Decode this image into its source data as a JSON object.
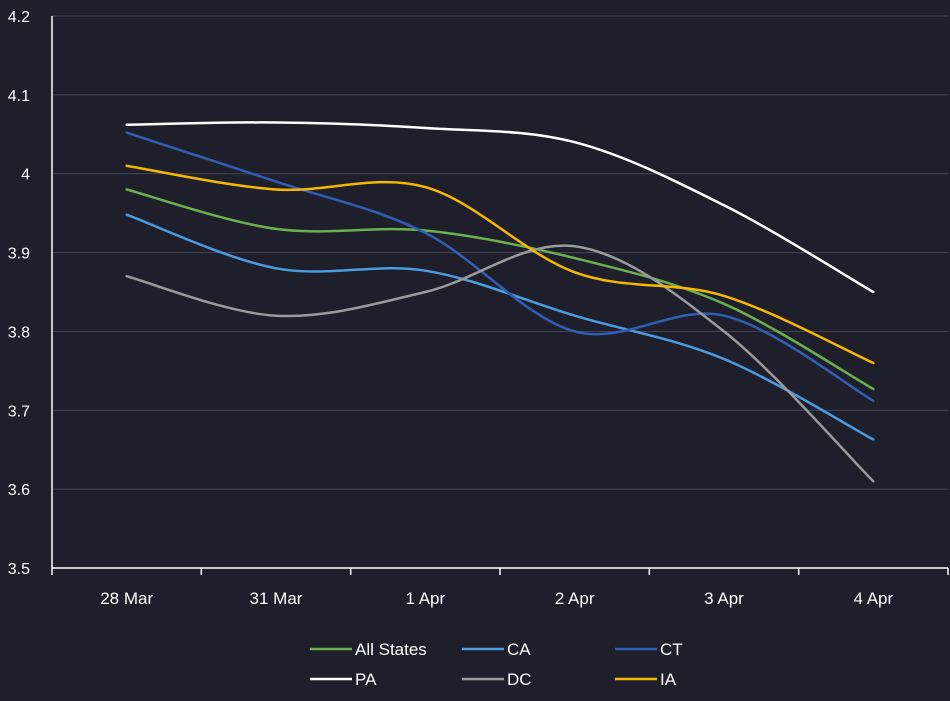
{
  "chart_data": {
    "type": "line",
    "title": "",
    "xlabel": "",
    "ylabel": "",
    "categories": [
      "28 Mar",
      "31 Mar",
      "1 Apr",
      "2 Apr",
      "3 Apr",
      "4 Apr"
    ],
    "ylim": [
      3.5,
      4.2
    ],
    "yticks": [
      "3.5",
      "3.6",
      "3.7",
      "3.8",
      "3.9",
      "4",
      "4.1",
      "4.2"
    ],
    "grid": "horizontal",
    "legend_position": "bottom",
    "series": [
      {
        "name": "All States",
        "color": "#6ab04c",
        "values": [
          3.98,
          3.93,
          3.928,
          3.893,
          3.835,
          3.727
        ]
      },
      {
        "name": "CA",
        "color": "#4a9be0",
        "values": [
          3.948,
          3.88,
          3.877,
          3.82,
          3.765,
          3.663
        ]
      },
      {
        "name": "CT",
        "color": "#2f5fb3",
        "values": [
          4.052,
          3.99,
          3.925,
          3.8,
          3.82,
          3.712
        ]
      },
      {
        "name": "PA",
        "color": "#ffffff",
        "values": [
          4.062,
          4.065,
          4.058,
          4.04,
          3.96,
          3.85
        ]
      },
      {
        "name": "DC",
        "color": "#9a9a9a",
        "values": [
          3.87,
          3.82,
          3.85,
          3.908,
          3.8,
          3.61
        ]
      },
      {
        "name": "IA",
        "color": "#f5b800",
        "values": [
          4.01,
          3.98,
          3.983,
          3.875,
          3.845,
          3.76
        ]
      }
    ]
  }
}
